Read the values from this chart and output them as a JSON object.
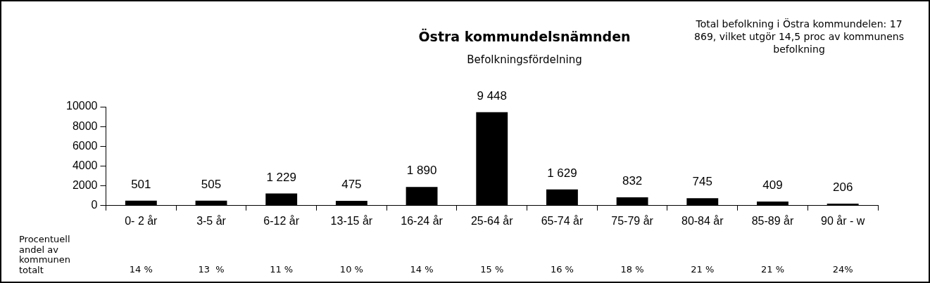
{
  "chart_data": {
    "type": "bar",
    "title": "Östra kommundelsnämnden",
    "subtitle": "Befolkningsfördelning",
    "categories": [
      "0- 2 år",
      "3-5 år",
      "6-12 år",
      "13-15 år",
      "16-24 år",
      "25-64 år",
      "65-74 år",
      "75-79 år",
      "80-84 år",
      "85-89 år",
      "90 år - w"
    ],
    "values": [
      501,
      505,
      1229,
      475,
      1890,
      9448,
      1629,
      832,
      745,
      409,
      206
    ],
    "value_labels": [
      "501",
      "505",
      "1 229",
      "475",
      "1 890",
      "9 448",
      "1 629",
      "832",
      "745",
      "409",
      "206"
    ],
    "color": "#000000",
    "ylim": [
      0,
      10000
    ],
    "yticks": [
      0,
      2000,
      4000,
      6000,
      8000,
      10000
    ],
    "grid": false,
    "legend": false,
    "annotations": [
      "Total befolkning i Östra kommundelen: 17 869, vilket utgör 14,5 proc av kommunens befolkning",
      "Procentuell andel av kommunen totalt",
      "14 %",
      "13  %",
      "11 %",
      "10 %",
      "14 %",
      "15 %",
      "16 %",
      "18 %",
      "21 %",
      "21 %",
      "24%"
    ]
  }
}
